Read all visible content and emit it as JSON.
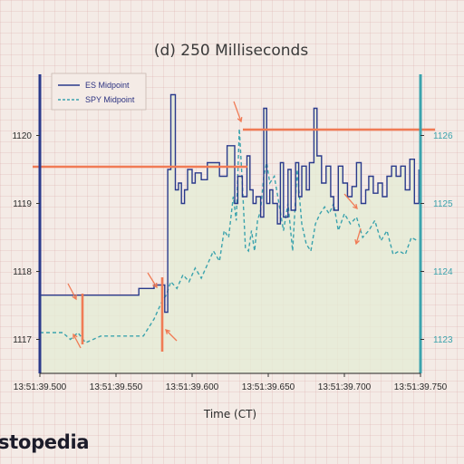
{
  "brand": {
    "logo_text": "stopedia"
  },
  "chart_data": {
    "type": "line",
    "title": "(d) 250 Milliseconds",
    "xlabel": "Time (CT)",
    "x_ticks": [
      "13:51:39.500",
      "13:51:39.550",
      "13:51:39.600",
      "13:51:39.650",
      "13:51:39.700",
      "13:51:39.750"
    ],
    "xlim": [
      0.0,
      0.25
    ],
    "left_axis": {
      "ticks": [
        "1117",
        "1118",
        "1119",
        "1120"
      ],
      "ylim": [
        1116.5,
        1120.9
      ],
      "color": "#2a3a8c"
    },
    "right_axis": {
      "ticks": [
        "1123",
        "1124",
        "1125",
        "1126"
      ],
      "ylim": [
        1122.5,
        1126.9
      ],
      "color": "#3ba3ad"
    },
    "legend": {
      "placement": "top-left",
      "entries": [
        "ES Midpoint",
        "SPY Midpoint"
      ]
    },
    "colors": {
      "es": "#2a3a8c",
      "spy": "#3ba3ad",
      "annotation": "#f07b55",
      "fill": "#e4ecd4"
    },
    "series": [
      {
        "name": "ES Midpoint",
        "axis": "left",
        "style": "solid",
        "x": [
          0.0,
          0.065,
          0.065,
          0.075,
          0.075,
          0.082,
          0.082,
          0.084,
          0.084,
          0.086,
          0.086,
          0.089,
          0.089,
          0.091,
          0.091,
          0.093,
          0.093,
          0.095,
          0.095,
          0.097,
          0.097,
          0.1,
          0.1,
          0.102,
          0.102,
          0.106,
          0.106,
          0.11,
          0.11,
          0.118,
          0.118,
          0.123,
          0.123,
          0.128,
          0.128,
          0.13,
          0.13,
          0.133,
          0.133,
          0.136,
          0.136,
          0.138,
          0.138,
          0.14,
          0.14,
          0.142,
          0.142,
          0.145,
          0.145,
          0.147,
          0.147,
          0.149,
          0.149,
          0.151,
          0.151,
          0.153,
          0.153,
          0.156,
          0.156,
          0.158,
          0.158,
          0.16,
          0.16,
          0.163,
          0.163,
          0.165,
          0.165,
          0.168,
          0.168,
          0.17,
          0.17,
          0.172,
          0.172,
          0.175,
          0.175,
          0.177,
          0.177,
          0.18,
          0.18,
          0.182,
          0.182,
          0.185,
          0.185,
          0.188,
          0.188,
          0.191,
          0.191,
          0.193,
          0.193,
          0.196,
          0.196,
          0.199,
          0.199,
          0.202,
          0.202,
          0.205,
          0.205,
          0.208,
          0.208,
          0.211,
          0.211,
          0.214,
          0.214,
          0.216,
          0.216,
          0.219,
          0.219,
          0.222,
          0.222,
          0.225,
          0.225,
          0.228,
          0.228,
          0.231,
          0.231,
          0.234,
          0.234,
          0.237,
          0.237,
          0.24,
          0.24,
          0.243,
          0.243,
          0.246,
          0.246,
          0.249,
          0.249
        ],
        "y": [
          1117.65,
          1117.65,
          1117.75,
          1117.75,
          1117.8,
          1117.8,
          1117.4,
          1117.4,
          1119.5,
          1119.5,
          1120.6,
          1120.6,
          1119.2,
          1119.2,
          1119.3,
          1119.3,
          1119.0,
          1119.0,
          1119.2,
          1119.2,
          1119.5,
          1119.5,
          1119.3,
          1119.3,
          1119.45,
          1119.45,
          1119.35,
          1119.35,
          1119.6,
          1119.6,
          1119.4,
          1119.4,
          1119.85,
          1119.85,
          1119.0,
          1119.0,
          1119.4,
          1119.4,
          1119.1,
          1119.1,
          1119.7,
          1119.7,
          1119.2,
          1119.2,
          1119.0,
          1119.0,
          1119.1,
          1119.1,
          1118.8,
          1118.8,
          1120.4,
          1120.4,
          1119.0,
          1119.0,
          1119.2,
          1119.2,
          1119.0,
          1119.0,
          1118.7,
          1118.7,
          1119.6,
          1119.6,
          1118.8,
          1118.8,
          1119.5,
          1119.5,
          1118.9,
          1118.9,
          1119.6,
          1119.6,
          1119.1,
          1119.1,
          1119.55,
          1119.55,
          1119.2,
          1119.2,
          1119.6,
          1119.6,
          1120.4,
          1120.4,
          1119.7,
          1119.7,
          1119.3,
          1119.3,
          1119.55,
          1119.55,
          1119.1,
          1119.1,
          1118.9,
          1118.9,
          1119.55,
          1119.55,
          1119.3,
          1119.3,
          1119.1,
          1119.1,
          1119.25,
          1119.25,
          1119.6,
          1119.6,
          1119.0,
          1119.0,
          1119.2,
          1119.2,
          1119.4,
          1119.4,
          1119.15,
          1119.15,
          1119.3,
          1119.3,
          1119.1,
          1119.1,
          1119.4,
          1119.4,
          1119.55,
          1119.55,
          1119.4,
          1119.4,
          1119.55,
          1119.55,
          1119.2,
          1119.2,
          1119.65,
          1119.65,
          1119.0,
          1119.0,
          1119.5
        ]
      },
      {
        "name": "SPY Midpoint",
        "axis": "right",
        "style": "dashed",
        "x": [
          0.0,
          0.015,
          0.02,
          0.025,
          0.03,
          0.04,
          0.05,
          0.06,
          0.068,
          0.075,
          0.08,
          0.083,
          0.086,
          0.09,
          0.094,
          0.098,
          0.102,
          0.106,
          0.11,
          0.114,
          0.118,
          0.121,
          0.124,
          0.127,
          0.129,
          0.131,
          0.133,
          0.135,
          0.137,
          0.139,
          0.141,
          0.143,
          0.145,
          0.147,
          0.149,
          0.151,
          0.154,
          0.157,
          0.16,
          0.163,
          0.166,
          0.169,
          0.172,
          0.175,
          0.178,
          0.181,
          0.184,
          0.187,
          0.19,
          0.193,
          0.196,
          0.2,
          0.204,
          0.208,
          0.212,
          0.216,
          0.22,
          0.224,
          0.228,
          0.232,
          0.236,
          0.24,
          0.244,
          0.248
        ],
        "y": [
          1123.1,
          1123.1,
          1123.0,
          1123.1,
          1122.95,
          1123.05,
          1123.05,
          1123.05,
          1123.05,
          1123.3,
          1123.55,
          1123.65,
          1123.85,
          1123.75,
          1123.95,
          1123.85,
          1124.05,
          1123.9,
          1124.1,
          1124.3,
          1124.15,
          1124.6,
          1124.5,
          1125.1,
          1124.75,
          1126.1,
          1125.3,
          1124.35,
          1124.3,
          1124.6,
          1124.3,
          1124.75,
          1124.9,
          1125.4,
          1125.6,
          1125.3,
          1125.4,
          1125.0,
          1124.6,
          1125.0,
          1124.3,
          1125.5,
          1124.7,
          1124.4,
          1124.3,
          1124.7,
          1124.85,
          1124.95,
          1124.85,
          1125.0,
          1124.6,
          1124.85,
          1124.7,
          1124.8,
          1124.5,
          1124.6,
          1124.75,
          1124.45,
          1124.6,
          1124.25,
          1124.3,
          1124.25,
          1124.5,
          1124.45
        ]
      }
    ]
  }
}
